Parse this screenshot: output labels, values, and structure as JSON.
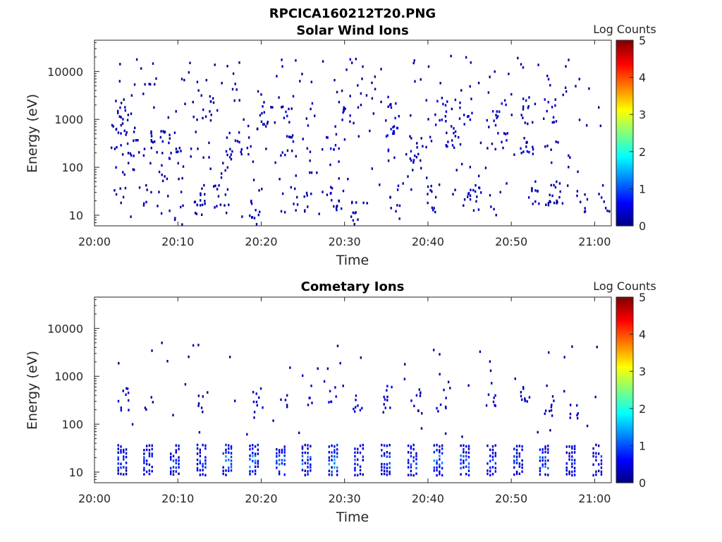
{
  "figure_title": "RPCICA160212T20.PNG",
  "chart_data": [
    {
      "type": "heatmap",
      "title": "Solar Wind Ions",
      "xlabel": "Time",
      "ylabel": "Energy (eV)",
      "x_ticks": [
        "20:00",
        "20:10",
        "20:20",
        "20:30",
        "20:40",
        "20:50",
        "21:00"
      ],
      "x_range_minutes": [
        0,
        62
      ],
      "y_ticks": [
        "10",
        "100",
        "1000",
        "10000"
      ],
      "y_scale": "log",
      "y_range": [
        6,
        45000
      ],
      "colorbar": {
        "label": "Log Counts",
        "ticks": [
          "0",
          "1",
          "2",
          "3",
          "4",
          "5"
        ],
        "range": [
          0,
          5
        ],
        "colormap": "jet"
      },
      "description_of_values": "sparse scattered single counts (log counts mostly 0-0.7) across 10 eV to 30 keV over 20:02-21:02",
      "clusters": [
        {
          "t": 2.5,
          "e": 400,
          "v": 0.3
        },
        {
          "t": 3.0,
          "e": 25,
          "v": 0.3
        },
        {
          "t": 3.2,
          "e": 1300,
          "v": 0.4
        },
        {
          "t": 3.4,
          "e": 500,
          "v": 0.6
        },
        {
          "t": 4.0,
          "e": 200,
          "v": 0.3
        },
        {
          "t": 6.0,
          "e": 20,
          "v": 0.3
        },
        {
          "t": 6.5,
          "e": 3500,
          "v": 0.3
        },
        {
          "t": 7.5,
          "e": 300,
          "v": 0.4
        },
        {
          "t": 9.5,
          "e": 250,
          "v": 0.4
        },
        {
          "t": 10.0,
          "e": 8,
          "v": 0.3
        },
        {
          "t": 12.5,
          "e": 20,
          "v": 0.3
        },
        {
          "t": 13.5,
          "e": 1500,
          "v": 0.3
        },
        {
          "t": 15.5,
          "e": 30,
          "v": 0.3
        },
        {
          "t": 16.5,
          "e": 300,
          "v": 0.4
        },
        {
          "t": 18.0,
          "e": 350,
          "v": 0.5
        },
        {
          "t": 19.2,
          "e": 10,
          "v": 0.5
        },
        {
          "t": 20.5,
          "e": 1200,
          "v": 0.3
        },
        {
          "t": 22.5,
          "e": 1400,
          "v": 0.7
        },
        {
          "t": 23.0,
          "e": 300,
          "v": 0.5
        },
        {
          "t": 23.5,
          "e": 20,
          "v": 0.4
        },
        {
          "t": 25.5,
          "e": 20,
          "v": 0.3
        },
        {
          "t": 28.5,
          "e": 400,
          "v": 0.7
        },
        {
          "t": 29.0,
          "e": 20,
          "v": 0.5
        },
        {
          "t": 30.0,
          "e": 1500,
          "v": 0.4
        },
        {
          "t": 31.5,
          "e": 10,
          "v": 0.4
        },
        {
          "t": 35.3,
          "e": 1500,
          "v": 0.7
        },
        {
          "t": 35.5,
          "e": 350,
          "v": 0.7
        },
        {
          "t": 35.8,
          "e": 20,
          "v": 0.4
        },
        {
          "t": 38.5,
          "e": 250,
          "v": 0.4
        },
        {
          "t": 40.5,
          "e": 20,
          "v": 0.4
        },
        {
          "t": 41.5,
          "e": 1400,
          "v": 0.6
        },
        {
          "t": 42.5,
          "e": 350,
          "v": 0.4
        },
        {
          "t": 44.5,
          "e": 1400,
          "v": 0.6
        },
        {
          "t": 45.5,
          "e": 20,
          "v": 0.4
        },
        {
          "t": 48.5,
          "e": 1400,
          "v": 0.7
        },
        {
          "t": 48.8,
          "e": 400,
          "v": 0.6
        },
        {
          "t": 51.5,
          "e": 1400,
          "v": 0.5
        },
        {
          "t": 51.8,
          "e": 300,
          "v": 0.5
        },
        {
          "t": 52.5,
          "e": 30,
          "v": 0.4
        },
        {
          "t": 54.5,
          "e": 1400,
          "v": 0.5
        },
        {
          "t": 55.0,
          "e": 20,
          "v": 0.3
        },
        {
          "t": 58.5,
          "e": 20,
          "v": 0.3
        },
        {
          "t": 61.5,
          "e": 20,
          "v": 0.3
        }
      ]
    },
    {
      "type": "heatmap",
      "title": "Cometary Ions",
      "xlabel": "Time",
      "ylabel": "Energy (eV)",
      "x_ticks": [
        "20:00",
        "20:10",
        "20:20",
        "20:30",
        "20:40",
        "20:50",
        "21:00"
      ],
      "x_range_minutes": [
        0,
        62
      ],
      "y_ticks": [
        "10",
        "100",
        "1000",
        "10000"
      ],
      "y_scale": "log",
      "y_range": [
        6,
        45000
      ],
      "colorbar": {
        "label": "Log Counts",
        "ticks": [
          "0",
          "1",
          "2",
          "3",
          "4",
          "5"
        ],
        "range": [
          0,
          5
        ],
        "colormap": "jet"
      },
      "description_of_values": "periodic bursts (~every 3.2 min) at 8-40 eV with log counts up to ~1.6, plus sparse counts 50-600 eV",
      "bursts_low_energy": [
        {
          "t": 3.3,
          "peak": 1.0
        },
        {
          "t": 6.4,
          "peak": 1.1
        },
        {
          "t": 9.6,
          "peak": 1.0
        },
        {
          "t": 12.8,
          "peak": 1.1
        },
        {
          "t": 15.9,
          "peak": 1.6
        },
        {
          "t": 19.1,
          "peak": 1.5
        },
        {
          "t": 22.3,
          "peak": 1.3
        },
        {
          "t": 25.4,
          "peak": 1.4
        },
        {
          "t": 28.6,
          "peak": 1.6
        },
        {
          "t": 31.7,
          "peak": 1.2
        },
        {
          "t": 34.9,
          "peak": 1.3
        },
        {
          "t": 38.1,
          "peak": 1.1
        },
        {
          "t": 41.2,
          "peak": 1.5
        },
        {
          "t": 44.4,
          "peak": 1.2
        },
        {
          "t": 47.6,
          "peak": 1.0
        },
        {
          "t": 50.8,
          "peak": 1.1
        },
        {
          "t": 53.9,
          "peak": 1.4
        },
        {
          "t": 57.1,
          "peak": 1.1
        },
        {
          "t": 60.3,
          "peak": 1.0
        }
      ],
      "sparse_mid_energy": [
        {
          "t": 3.5,
          "e": 300,
          "v": 0.5
        },
        {
          "t": 6.5,
          "e": 200,
          "v": 0.3
        },
        {
          "t": 12.8,
          "e": 250,
          "v": 0.3
        },
        {
          "t": 19.5,
          "e": 300,
          "v": 0.5
        },
        {
          "t": 22.5,
          "e": 350,
          "v": 0.4
        },
        {
          "t": 25.5,
          "e": 350,
          "v": 0.5
        },
        {
          "t": 28.5,
          "e": 350,
          "v": 0.6
        },
        {
          "t": 31.5,
          "e": 300,
          "v": 0.5
        },
        {
          "t": 35.2,
          "e": 350,
          "v": 0.6
        },
        {
          "t": 38.5,
          "e": 300,
          "v": 0.4
        },
        {
          "t": 41.5,
          "e": 300,
          "v": 0.4
        },
        {
          "t": 47.5,
          "e": 400,
          "v": 0.4
        },
        {
          "t": 51.5,
          "e": 400,
          "v": 0.5
        },
        {
          "t": 54.5,
          "e": 250,
          "v": 0.3
        },
        {
          "t": 57.5,
          "e": 200,
          "v": 0.3
        }
      ]
    }
  ]
}
